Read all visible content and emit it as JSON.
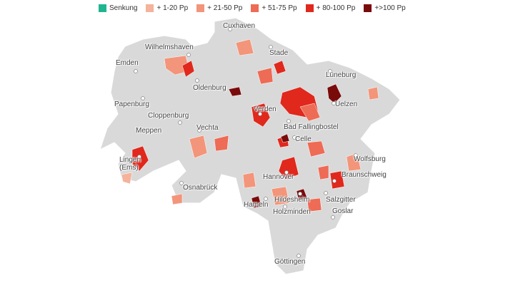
{
  "legend": [
    {
      "label": "Senkung",
      "color": "#1fb68f"
    },
    {
      "label": "+ 1-20 Pp",
      "color": "#f4b39a"
    },
    {
      "label": "+ 21-50 Pp",
      "color": "#f3957a"
    },
    {
      "label": "+ 51-75 Pp",
      "color": "#ee6b55"
    },
    {
      "label": "+ 80-100 Pp",
      "color": "#e0281d"
    },
    {
      "label": "+>100 Pp",
      "color": "#7a0b0b"
    }
  ],
  "cities": [
    "Cuxhaven",
    "Stade",
    "Wilhelmshaven",
    "Emden",
    "Oldenburg",
    "Lüneburg",
    "Papenburg",
    "Cloppenburg",
    "Verden",
    "Uelzen",
    "Meppen",
    "Vechta",
    "Bad Fallingbostel",
    "Celle",
    "Wolfsburg",
    "Lingen (Ems)",
    "Hannover",
    "Braunschweig",
    "Osnabrück",
    "Hildesheim",
    "Salzgitter",
    "Hameln",
    "Holzminden",
    "Goslar",
    "Göttingen"
  ]
}
